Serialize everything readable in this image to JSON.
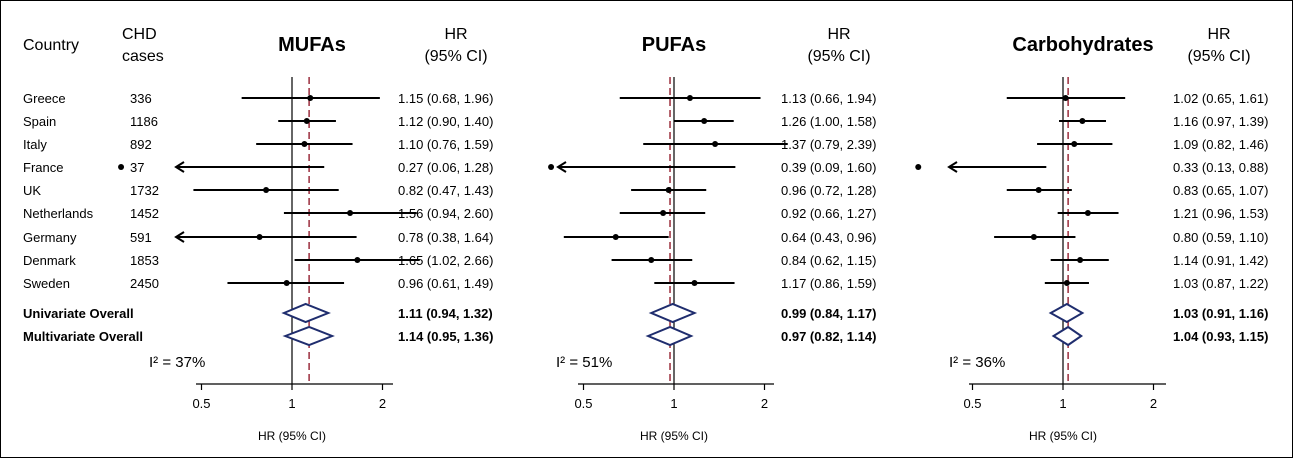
{
  "header": {
    "country": "Country",
    "chd_line1": "CHD",
    "chd_line2": "cases",
    "hr_line1": "HR",
    "hr_line2": "(95% CI)"
  },
  "rows": [
    {
      "country": "Greece",
      "cases": "336"
    },
    {
      "country": "Spain",
      "cases": "1186"
    },
    {
      "country": "Italy",
      "cases": "892"
    },
    {
      "country": "France",
      "cases": "37"
    },
    {
      "country": "UK",
      "cases": "1732"
    },
    {
      "country": "Netherlands",
      "cases": "1452"
    },
    {
      "country": "Germany",
      "cases": "591"
    },
    {
      "country": "Denmark",
      "cases": "1853"
    },
    {
      "country": "Sweden",
      "cases": "2450"
    }
  ],
  "overall_labels": [
    "Univariate Overall",
    "Multivariate Overall"
  ],
  "chart_data": [
    {
      "type": "forest",
      "title": "MUFAs",
      "xlabel": "HR (95% CI)",
      "xscale": "log",
      "xticks": [
        0.5,
        1,
        2
      ],
      "xlim": [
        0.3,
        2.6
      ],
      "reference_line": 1,
      "pooled_line": 1.14,
      "i2_label": "I² = 37%",
      "estimates": [
        {
          "label": "Greece",
          "hr": 1.15,
          "lower": 0.68,
          "upper": 1.96,
          "text": "1.15 (0.68, 1.96)"
        },
        {
          "label": "Spain",
          "hr": 1.12,
          "lower": 0.9,
          "upper": 1.4,
          "text": "1.12 (0.90, 1.40)"
        },
        {
          "label": "Italy",
          "hr": 1.1,
          "lower": 0.76,
          "upper": 1.59,
          "text": "1.10 (0.76, 1.59)"
        },
        {
          "label": "France",
          "hr": 0.27,
          "lower": 0.06,
          "upper": 1.28,
          "text": "0.27 (0.06, 1.28)"
        },
        {
          "label": "UK",
          "hr": 0.82,
          "lower": 0.47,
          "upper": 1.43,
          "text": "0.82 (0.47, 1.43)"
        },
        {
          "label": "Netherlands",
          "hr": 1.56,
          "lower": 0.94,
          "upper": 2.6,
          "text": "1.56 (0.94, 2.60)"
        },
        {
          "label": "Germany",
          "hr": 0.78,
          "lower": 0.38,
          "upper": 1.64,
          "text": "0.78 (0.38, 1.64)"
        },
        {
          "label": "Denmark",
          "hr": 1.65,
          "lower": 1.02,
          "upper": 2.66,
          "text": "1.65 (1.02, 2.66)"
        },
        {
          "label": "Sweden",
          "hr": 0.96,
          "lower": 0.61,
          "upper": 1.49,
          "text": "0.96 (0.61, 1.49)"
        }
      ],
      "overall": [
        {
          "label": "Univariate Overall",
          "hr": 1.11,
          "lower": 0.94,
          "upper": 1.32,
          "text": "1.11 (0.94, 1.32)"
        },
        {
          "label": "Multivariate Overall",
          "hr": 1.14,
          "lower": 0.95,
          "upper": 1.36,
          "text": "1.14 (0.95, 1.36)"
        }
      ]
    },
    {
      "type": "forest",
      "title": "PUFAs",
      "xlabel": "HR (95% CI)",
      "xscale": "log",
      "xticks": [
        0.5,
        1,
        2
      ],
      "xlim": [
        0.3,
        2.6
      ],
      "reference_line": 1,
      "pooled_line": 0.97,
      "i2_label": "I² = 51%",
      "estimates": [
        {
          "label": "Greece",
          "hr": 1.13,
          "lower": 0.66,
          "upper": 1.94,
          "text": "1.13 (0.66, 1.94)"
        },
        {
          "label": "Spain",
          "hr": 1.26,
          "lower": 1.0,
          "upper": 1.58,
          "text": "1.26 (1.00, 1.58)"
        },
        {
          "label": "Italy",
          "hr": 1.37,
          "lower": 0.79,
          "upper": 2.39,
          "text": "1.37 (0.79, 2.39)"
        },
        {
          "label": "France",
          "hr": 0.39,
          "lower": 0.09,
          "upper": 1.6,
          "text": "0.39 (0.09, 1.60)"
        },
        {
          "label": "UK",
          "hr": 0.96,
          "lower": 0.72,
          "upper": 1.28,
          "text": "0.96 (0.72, 1.28)"
        },
        {
          "label": "Netherlands",
          "hr": 0.92,
          "lower": 0.66,
          "upper": 1.27,
          "text": "0.92 (0.66, 1.27)"
        },
        {
          "label": "Germany",
          "hr": 0.64,
          "lower": 0.43,
          "upper": 0.96,
          "text": "0.64 (0.43, 0.96)"
        },
        {
          "label": "Denmark",
          "hr": 0.84,
          "lower": 0.62,
          "upper": 1.15,
          "text": "0.84 (0.62, 1.15)"
        },
        {
          "label": "Sweden",
          "hr": 1.17,
          "lower": 0.86,
          "upper": 1.59,
          "text": "1.17 (0.86, 1.59)"
        }
      ],
      "overall": [
        {
          "label": "Univariate Overall",
          "hr": 0.99,
          "lower": 0.84,
          "upper": 1.17,
          "text": "0.99 (0.84, 1.17)"
        },
        {
          "label": "Multivariate Overall",
          "hr": 0.97,
          "lower": 0.82,
          "upper": 1.14,
          "text": "0.97 (0.82, 1.14)"
        }
      ]
    },
    {
      "type": "forest",
      "title": "Carbohydrates",
      "xlabel": "HR (95% CI)",
      "xscale": "log",
      "xticks": [
        0.5,
        1,
        2
      ],
      "xlim": [
        0.3,
        2.6
      ],
      "reference_line": 1,
      "pooled_line": 1.04,
      "i2_label": "I² = 36%",
      "estimates": [
        {
          "label": "Greece",
          "hr": 1.02,
          "lower": 0.65,
          "upper": 1.61,
          "text": "1.02 (0.65, 1.61)"
        },
        {
          "label": "Spain",
          "hr": 1.16,
          "lower": 0.97,
          "upper": 1.39,
          "text": "1.16 (0.97, 1.39)"
        },
        {
          "label": "Italy",
          "hr": 1.09,
          "lower": 0.82,
          "upper": 1.46,
          "text": "1.09 (0.82, 1.46)"
        },
        {
          "label": "France",
          "hr": 0.33,
          "lower": 0.13,
          "upper": 0.88,
          "text": "0.33 (0.13, 0.88)"
        },
        {
          "label": "UK",
          "hr": 0.83,
          "lower": 0.65,
          "upper": 1.07,
          "text": "0.83 (0.65, 1.07)"
        },
        {
          "label": "Netherlands",
          "hr": 1.21,
          "lower": 0.96,
          "upper": 1.53,
          "text": "1.21 (0.96, 1.53)"
        },
        {
          "label": "Germany",
          "hr": 0.8,
          "lower": 0.59,
          "upper": 1.1,
          "text": "0.80 (0.59, 1.10)"
        },
        {
          "label": "Denmark",
          "hr": 1.14,
          "lower": 0.91,
          "upper": 1.42,
          "text": "1.14 (0.91, 1.42)"
        },
        {
          "label": "Sweden",
          "hr": 1.03,
          "lower": 0.87,
          "upper": 1.22,
          "text": "1.03 (0.87, 1.22)"
        }
      ],
      "overall": [
        {
          "label": "Univariate Overall",
          "hr": 1.03,
          "lower": 0.91,
          "upper": 1.16,
          "text": "1.03 (0.91, 1.16)"
        },
        {
          "label": "Multivariate Overall",
          "hr": 1.04,
          "lower": 0.93,
          "upper": 1.15,
          "text": "1.04 (0.93, 1.15)"
        }
      ]
    }
  ],
  "colors": {
    "ink": "#000000",
    "pooled_line": "#9b2d3c",
    "diamond": "#1f2d6e"
  }
}
